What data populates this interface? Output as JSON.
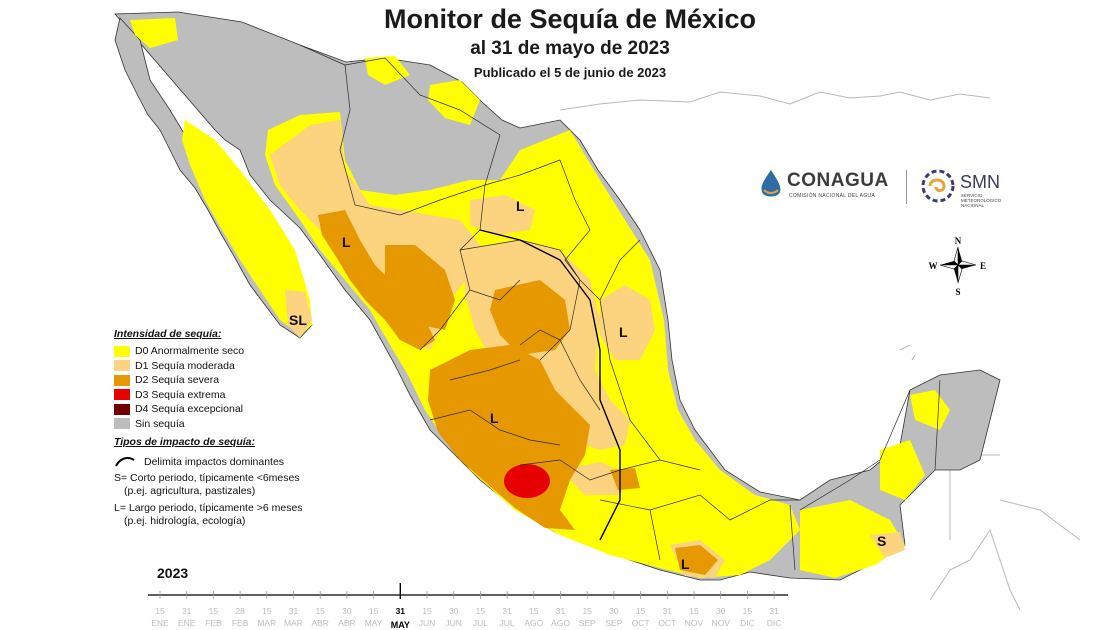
{
  "title": {
    "main": "Monitor de Sequía de México",
    "date": "al 31 de mayo de 2023",
    "published": "Publicado el 5 de junio de 2023"
  },
  "legend": {
    "intensity_heading": "Intensidad de sequía:",
    "intensity": [
      {
        "code": "D0",
        "label": "D0 Anormalmente seco",
        "color": "#ffff00"
      },
      {
        "code": "D1",
        "label": "D1 Sequía moderada",
        "color": "#fcd37f"
      },
      {
        "code": "D2",
        "label": "D2 Sequía severa",
        "color": "#e69800"
      },
      {
        "code": "D3",
        "label": "D3 Sequía extrema",
        "color": "#e60000"
      },
      {
        "code": "D4",
        "label": "D4 Sequía excepcional",
        "color": "#730000"
      },
      {
        "code": "none",
        "label": "Sin sequía",
        "color": "#bdbdbd"
      }
    ],
    "impact_heading": "Tipos de impacto de sequía:",
    "impact_line": "Delimita impactos dominantes",
    "short_term_1": "S= Corto periodo, típicamente <6meses",
    "short_term_2": "(p.ej. agricultura, pastizales)",
    "long_term_1": "L= Largo periodo, típicamente >6 meses",
    "long_term_2": "(p.ej. hidrología, ecología)"
  },
  "map_labels": [
    {
      "id": "l-sinaloa",
      "text": "L"
    },
    {
      "id": "l-coahuila",
      "text": "L"
    },
    {
      "id": "sl-bcs",
      "text": "SL"
    },
    {
      "id": "l-tamaulipas",
      "text": "L"
    },
    {
      "id": "l-jalisco",
      "text": "L"
    },
    {
      "id": "l-oaxaca",
      "text": "L"
    },
    {
      "id": "s-chiapas",
      "text": "S"
    }
  ],
  "compass": {
    "n": "N",
    "s": "S",
    "e": "E",
    "w": "W"
  },
  "logos": {
    "conagua": "CONAGUA",
    "conagua_sub": "COMISIÓN NACIONAL DEL AGUA",
    "smn": "SMN",
    "smn_sub_1": "SERVICIO",
    "smn_sub_2": "METEOROLÓGICO",
    "smn_sub_3": "NACIONAL"
  },
  "timeline": {
    "year": "2023",
    "ticks": [
      {
        "day": "15",
        "month": "ENE"
      },
      {
        "day": "31",
        "month": "ENE"
      },
      {
        "day": "15",
        "month": "FEB"
      },
      {
        "day": "28",
        "month": "FEB"
      },
      {
        "day": "15",
        "month": "MAR"
      },
      {
        "day": "31",
        "month": "MAR"
      },
      {
        "day": "15",
        "month": "ABR"
      },
      {
        "day": "30",
        "month": "ABR"
      },
      {
        "day": "15",
        "month": "MAY"
      },
      {
        "day": "31",
        "month": "MAY",
        "current": true
      },
      {
        "day": "15",
        "month": "JUN"
      },
      {
        "day": "30",
        "month": "JUN"
      },
      {
        "day": "15",
        "month": "JUL"
      },
      {
        "day": "31",
        "month": "JUL"
      },
      {
        "day": "15",
        "month": "AGO"
      },
      {
        "day": "31",
        "month": "AGO"
      },
      {
        "day": "15",
        "month": "SEP"
      },
      {
        "day": "30",
        "month": "SEP"
      },
      {
        "day": "15",
        "month": "OCT"
      },
      {
        "day": "31",
        "month": "OCT"
      },
      {
        "day": "15",
        "month": "NOV"
      },
      {
        "day": "30",
        "month": "NOV"
      },
      {
        "day": "15",
        "month": "DIC"
      },
      {
        "day": "31",
        "month": "DIC"
      }
    ]
  }
}
